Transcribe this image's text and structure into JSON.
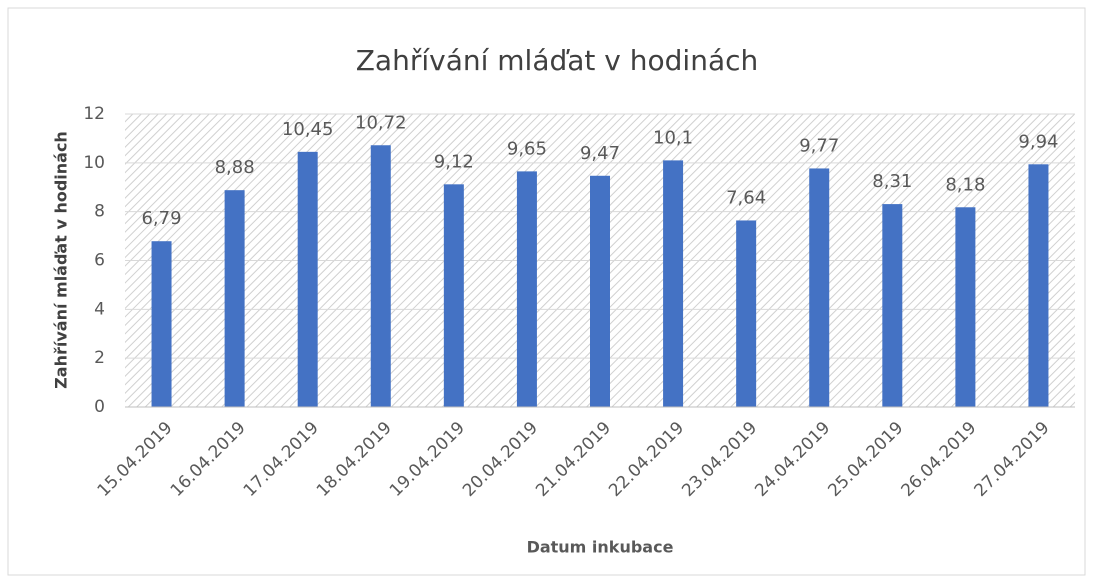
{
  "chart_data": {
    "type": "bar",
    "title": "Zahřívání mláďat v hodinách",
    "x_label": "Datum inkubace",
    "y_label": "Zahřívání mláďat v hodinách",
    "categories": [
      "15.04.2019",
      "16.04.2019",
      "17.04.2019",
      "18.04.2019",
      "19.04.2019",
      "20.04.2019",
      "21.04.2019",
      "22.04.2019",
      "23.04.2019",
      "24.04.2019",
      "25.04.2019",
      "26.04.2019",
      "27.04.2019"
    ],
    "values": [
      6.79,
      8.88,
      10.45,
      10.72,
      9.12,
      9.65,
      9.47,
      10.1,
      7.64,
      9.77,
      8.31,
      8.18,
      9.94
    ],
    "value_labels": [
      "6,79",
      "8,88",
      "10,45",
      "10,72",
      "9,12",
      "9,65",
      "9,47",
      "10,1",
      "7,64",
      "9,77",
      "8,31",
      "8,18",
      "9,94"
    ],
    "color": "#4472c4",
    "ylim": [
      0,
      12
    ],
    "yticks": [
      0,
      2,
      4,
      6,
      8,
      10,
      12
    ],
    "grid": true
  }
}
